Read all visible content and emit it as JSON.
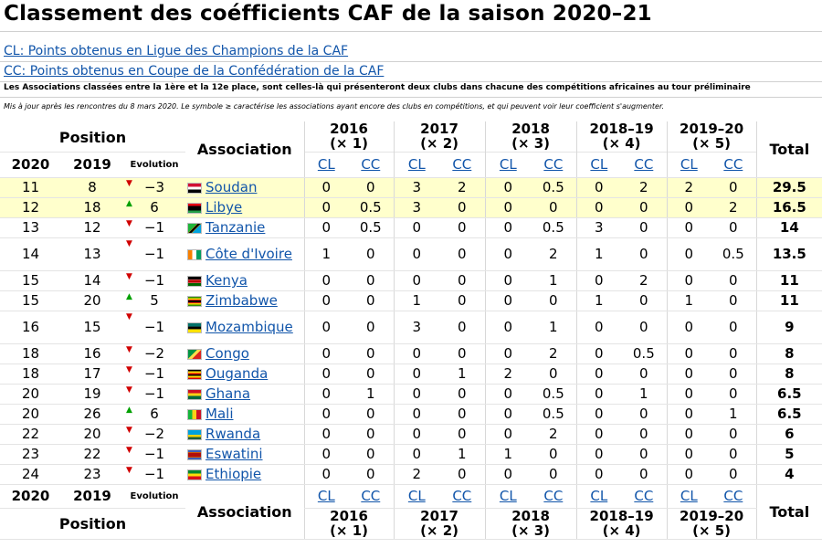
{
  "title": "Classement des coéfficients CAF de la saison 2020–21",
  "links": {
    "cl": "CL: Points obtenus en Ligue des Champions de la CAF",
    "cc": "CC: Points obtenus en Coupe de la Confédération de la CAF"
  },
  "note1": "Les Associations classées entre la 1ère et la 12e place, sont celles-là qui présenteront deux clubs dans chacune des compétitions africaines au tour préliminaire",
  "note2": "Mis à jour après les rencontres du 8 mars 2020. Le symbole ≥ caractérise les associations ayant encore des clubs en compétitions, et qui peuvent voir leur coefficient s'augmenter.",
  "header": {
    "position": "Position",
    "association": "Association",
    "total": "Total",
    "evolution": "Evolution",
    "y2020": "2020",
    "y2019": "2019",
    "cl": "CL",
    "cc": "CC",
    "seasons": [
      {
        "year": "2016",
        "mult": "(× 1)"
      },
      {
        "year": "2017",
        "mult": "(× 2)"
      },
      {
        "year": "2018",
        "mult": "(× 3)"
      },
      {
        "year": "2018–19",
        "mult": "(× 4)"
      },
      {
        "year": "2019–20",
        "mult": "(× 5)"
      }
    ]
  },
  "rows": [
    {
      "p2020": "11",
      "p2019": "8",
      "trend": "down",
      "evo": "−3",
      "country": "Soudan",
      "flag": "sudan",
      "v": [
        "0",
        "0",
        "3",
        "2",
        "0",
        "0.5",
        "0",
        "2",
        "2",
        "0"
      ],
      "total": "29.5",
      "highlight": true
    },
    {
      "p2020": "12",
      "p2019": "18",
      "trend": "up",
      "evo": "6",
      "country": "Libye",
      "flag": "libya",
      "v": [
        "0",
        "0.5",
        "3",
        "0",
        "0",
        "0",
        "0",
        "0",
        "0",
        "2"
      ],
      "total": "16.5",
      "highlight": true
    },
    {
      "p2020": "13",
      "p2019": "12",
      "trend": "down",
      "evo": "−1",
      "country": "Tanzanie",
      "flag": "tanzania",
      "v": [
        "0",
        "0.5",
        "0",
        "0",
        "0",
        "0.5",
        "3",
        "0",
        "0",
        "0"
      ],
      "total": "14",
      "highlight": false
    },
    {
      "p2020": "14",
      "p2019": "13",
      "trend": "down",
      "evo": "−1",
      "country": "Côte d'Ivoire",
      "flag": "ivory",
      "v": [
        "1",
        "0",
        "0",
        "0",
        "0",
        "2",
        "1",
        "0",
        "0",
        "0.5"
      ],
      "total": "13.5",
      "highlight": false
    },
    {
      "p2020": "15",
      "p2019": "14",
      "trend": "down",
      "evo": "−1",
      "country": "Kenya",
      "flag": "kenya",
      "v": [
        "0",
        "0",
        "0",
        "0",
        "0",
        "1",
        "0",
        "2",
        "0",
        "0"
      ],
      "total": "11",
      "highlight": false
    },
    {
      "p2020": "15",
      "p2019": "20",
      "trend": "up",
      "evo": "5",
      "country": "Zimbabwe",
      "flag": "zimbabwe",
      "v": [
        "0",
        "0",
        "1",
        "0",
        "0",
        "0",
        "1",
        "0",
        "1",
        "0"
      ],
      "total": "11",
      "highlight": false
    },
    {
      "p2020": "16",
      "p2019": "15",
      "trend": "down",
      "evo": "−1",
      "country": "Mozambique",
      "flag": "mozambique",
      "v": [
        "0",
        "0",
        "3",
        "0",
        "0",
        "1",
        "0",
        "0",
        "0",
        "0"
      ],
      "total": "9",
      "highlight": false
    },
    {
      "p2020": "18",
      "p2019": "16",
      "trend": "down",
      "evo": "−2",
      "country": "Congo",
      "flag": "congo",
      "v": [
        "0",
        "0",
        "0",
        "0",
        "0",
        "2",
        "0",
        "0.5",
        "0",
        "0"
      ],
      "total": "8",
      "highlight": false
    },
    {
      "p2020": "18",
      "p2019": "17",
      "trend": "down",
      "evo": "−1",
      "country": "Ouganda",
      "flag": "uganda",
      "v": [
        "0",
        "0",
        "0",
        "1",
        "2",
        "0",
        "0",
        "0",
        "0",
        "0"
      ],
      "total": "8",
      "highlight": false
    },
    {
      "p2020": "20",
      "p2019": "19",
      "trend": "down",
      "evo": "−1",
      "country": "Ghana",
      "flag": "ghana",
      "v": [
        "0",
        "1",
        "0",
        "0",
        "0",
        "0.5",
        "0",
        "1",
        "0",
        "0"
      ],
      "total": "6.5",
      "highlight": false
    },
    {
      "p2020": "20",
      "p2019": "26",
      "trend": "up",
      "evo": "6",
      "country": "Mali",
      "flag": "mali",
      "v": [
        "0",
        "0",
        "0",
        "0",
        "0",
        "0.5",
        "0",
        "0",
        "0",
        "1"
      ],
      "total": "6.5",
      "highlight": false
    },
    {
      "p2020": "22",
      "p2019": "20",
      "trend": "down",
      "evo": "−2",
      "country": "Rwanda",
      "flag": "rwanda",
      "v": [
        "0",
        "0",
        "0",
        "0",
        "0",
        "2",
        "0",
        "0",
        "0",
        "0"
      ],
      "total": "6",
      "highlight": false
    },
    {
      "p2020": "23",
      "p2019": "22",
      "trend": "down",
      "evo": "−1",
      "country": "Eswatini",
      "flag": "eswatini",
      "v": [
        "0",
        "0",
        "0",
        "1",
        "1",
        "0",
        "0",
        "0",
        "0",
        "0"
      ],
      "total": "5",
      "highlight": false
    },
    {
      "p2020": "24",
      "p2019": "23",
      "trend": "down",
      "evo": "−1",
      "country": "Ethiopie",
      "flag": "ethiopia",
      "v": [
        "0",
        "0",
        "2",
        "0",
        "0",
        "0",
        "0",
        "0",
        "0",
        "0"
      ],
      "total": "4",
      "highlight": false
    }
  ]
}
